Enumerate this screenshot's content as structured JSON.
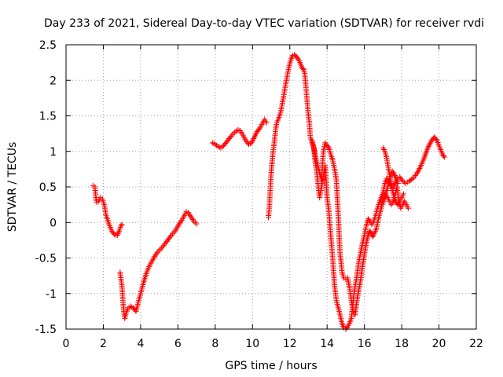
{
  "chart_data": {
    "type": "scatter",
    "title": "Day 233 of 2021, Sidereal Day-to-day VTEC variation (SDTVAR) for receiver rvdi",
    "xlabel": "GPS time / hours",
    "ylabel": "SDTVAR / TECUs",
    "xlim": [
      0,
      22
    ],
    "ylim": [
      -1.5,
      2.5
    ],
    "xticks": [
      "0",
      "2",
      "4",
      "6",
      "8",
      "10",
      "12",
      "14",
      "16",
      "18",
      "20",
      "22"
    ],
    "yticks": [
      "-1.5",
      "-1",
      "-0.5",
      "0",
      "0.5",
      "1",
      "1.5",
      "2",
      "2.5"
    ],
    "grid": true,
    "marker": "plus",
    "color": "#ff0000",
    "series": [
      {
        "segments": [
          [
            [
              1.45,
              0.52
            ],
            [
              1.55,
              0.5
            ],
            [
              1.6,
              0.35
            ],
            [
              1.65,
              0.28
            ],
            [
              1.75,
              0.3
            ],
            [
              1.85,
              0.35
            ],
            [
              1.95,
              0.33
            ],
            [
              2.05,
              0.25
            ],
            [
              2.15,
              0.1
            ],
            [
              2.3,
              -0.02
            ],
            [
              2.45,
              -0.12
            ],
            [
              2.6,
              -0.17
            ],
            [
              2.75,
              -0.18
            ],
            [
              2.85,
              -0.12
            ],
            [
              2.95,
              -0.04
            ],
            [
              3.0,
              -0.03
            ]
          ],
          [
            [
              2.9,
              -0.7
            ],
            [
              3.0,
              -0.9
            ],
            [
              3.05,
              -1.1
            ],
            [
              3.1,
              -1.25
            ],
            [
              3.15,
              -1.35
            ],
            [
              3.2,
              -1.3
            ],
            [
              3.3,
              -1.22
            ],
            [
              3.45,
              -1.18
            ],
            [
              3.6,
              -1.2
            ],
            [
              3.75,
              -1.25
            ],
            [
              3.85,
              -1.15
            ],
            [
              4.0,
              -1.0
            ],
            [
              4.15,
              -0.85
            ],
            [
              4.3,
              -0.72
            ],
            [
              4.45,
              -0.62
            ],
            [
              4.6,
              -0.55
            ],
            [
              4.75,
              -0.48
            ],
            [
              4.9,
              -0.42
            ],
            [
              5.05,
              -0.38
            ],
            [
              5.25,
              -0.32
            ],
            [
              5.45,
              -0.25
            ],
            [
              5.65,
              -0.18
            ],
            [
              5.85,
              -0.12
            ],
            [
              6.05,
              -0.03
            ],
            [
              6.2,
              0.03
            ],
            [
              6.35,
              0.1
            ],
            [
              6.45,
              0.15
            ],
            [
              6.55,
              0.14
            ],
            [
              6.7,
              0.08
            ],
            [
              6.85,
              0.02
            ],
            [
              7.0,
              -0.02
            ]
          ],
          [
            [
              7.85,
              1.12
            ],
            [
              8.0,
              1.1
            ],
            [
              8.15,
              1.07
            ],
            [
              8.3,
              1.05
            ],
            [
              8.45,
              1.08
            ],
            [
              8.6,
              1.13
            ],
            [
              8.75,
              1.18
            ],
            [
              8.9,
              1.23
            ],
            [
              9.05,
              1.27
            ],
            [
              9.2,
              1.3
            ],
            [
              9.35,
              1.29
            ],
            [
              9.5,
              1.22
            ],
            [
              9.65,
              1.15
            ],
            [
              9.8,
              1.1
            ],
            [
              9.95,
              1.12
            ],
            [
              10.1,
              1.2
            ],
            [
              10.25,
              1.28
            ],
            [
              10.4,
              1.33
            ],
            [
              10.55,
              1.4
            ],
            [
              10.65,
              1.45
            ],
            [
              10.75,
              1.4
            ]
          ],
          [
            [
              10.85,
              0.07
            ],
            [
              10.9,
              0.2
            ],
            [
              10.95,
              0.45
            ],
            [
              11.0,
              0.68
            ],
            [
              11.05,
              0.85
            ],
            [
              11.1,
              1.0
            ],
            [
              11.15,
              1.08
            ],
            [
              11.2,
              1.2
            ],
            [
              11.25,
              1.33
            ],
            [
              11.3,
              1.4
            ],
            [
              11.35,
              1.43
            ],
            [
              11.45,
              1.5
            ],
            [
              11.55,
              1.6
            ],
            [
              11.65,
              1.75
            ],
            [
              11.75,
              1.9
            ],
            [
              11.85,
              2.05
            ],
            [
              11.95,
              2.18
            ],
            [
              12.05,
              2.28
            ],
            [
              12.15,
              2.35
            ],
            [
              12.25,
              2.36
            ],
            [
              12.35,
              2.33
            ],
            [
              12.45,
              2.3
            ],
            [
              12.55,
              2.25
            ],
            [
              12.65,
              2.18
            ],
            [
              12.75,
              2.15
            ],
            [
              12.8,
              2.1
            ],
            [
              12.85,
              1.95
            ],
            [
              12.9,
              1.8
            ],
            [
              12.95,
              1.65
            ],
            [
              13.0,
              1.5
            ],
            [
              13.05,
              1.4
            ],
            [
              13.1,
              1.2
            ],
            [
              13.2,
              1.12
            ],
            [
              13.3,
              1.05
            ],
            [
              13.35,
              0.88
            ],
            [
              13.45,
              0.7
            ],
            [
              13.55,
              0.45
            ],
            [
              13.6,
              0.35
            ],
            [
              13.7,
              0.5
            ],
            [
              13.8,
              0.65
            ],
            [
              13.9,
              0.8
            ],
            [
              14.0,
              0.35
            ],
            [
              14.1,
              0.15
            ],
            [
              14.2,
              -0.2
            ],
            [
              14.3,
              -0.5
            ],
            [
              14.4,
              -0.9
            ],
            [
              14.5,
              -1.1
            ],
            [
              14.6,
              -1.2
            ],
            [
              14.7,
              -1.3
            ],
            [
              14.8,
              -1.42
            ],
            [
              14.9,
              -1.48
            ],
            [
              15.0,
              -1.5
            ],
            [
              15.1,
              -1.47
            ],
            [
              15.2,
              -1.42
            ],
            [
              15.3,
              -1.35
            ],
            [
              15.4,
              -1.1
            ],
            [
              15.5,
              -0.9
            ],
            [
              15.6,
              -0.75
            ],
            [
              15.7,
              -0.55
            ],
            [
              15.8,
              -0.42
            ],
            [
              15.9,
              -0.3
            ],
            [
              16.0,
              -0.18
            ],
            [
              16.1,
              -0.05
            ],
            [
              16.2,
              0.05
            ],
            [
              16.3,
              0.02
            ],
            [
              16.4,
              -0.03
            ],
            [
              16.5,
              0.02
            ],
            [
              16.6,
              0.1
            ],
            [
              16.7,
              0.2
            ],
            [
              16.8,
              0.28
            ],
            [
              16.9,
              0.35
            ],
            [
              17.0,
              0.42
            ],
            [
              17.1,
              0.55
            ],
            [
              17.2,
              0.62
            ],
            [
              17.3,
              0.58
            ],
            [
              17.4,
              0.52
            ],
            [
              17.5,
              0.48
            ],
            [
              17.6,
              0.52
            ],
            [
              17.7,
              0.58
            ],
            [
              17.8,
              0.62
            ],
            [
              17.9,
              0.64
            ],
            [
              18.0,
              0.6
            ],
            [
              18.2,
              0.55
            ],
            [
              18.4,
              0.58
            ],
            [
              18.6,
              0.62
            ],
            [
              18.8,
              0.68
            ],
            [
              19.0,
              0.78
            ],
            [
              19.2,
              0.9
            ],
            [
              19.4,
              1.05
            ],
            [
              19.6,
              1.15
            ],
            [
              19.75,
              1.2
            ],
            [
              19.9,
              1.15
            ],
            [
              20.05,
              1.05
            ],
            [
              20.2,
              0.95
            ],
            [
              20.3,
              0.92
            ]
          ],
          [
            [
              13.2,
              1.15
            ],
            [
              13.4,
              0.9
            ],
            [
              13.55,
              0.75
            ],
            [
              13.7,
              0.6
            ],
            [
              13.8,
              1.0
            ],
            [
              13.9,
              1.12
            ],
            [
              14.0,
              1.08
            ],
            [
              14.1,
              1.05
            ],
            [
              14.2,
              0.95
            ],
            [
              14.3,
              0.88
            ],
            [
              14.4,
              0.75
            ],
            [
              14.5,
              0.6
            ],
            [
              14.55,
              0.35
            ],
            [
              14.6,
              0.1
            ],
            [
              14.65,
              -0.2
            ],
            [
              14.7,
              -0.45
            ],
            [
              14.75,
              -0.55
            ],
            [
              14.8,
              -0.7
            ],
            [
              14.9,
              -0.78
            ],
            [
              15.0,
              -0.8
            ],
            [
              15.1,
              -0.78
            ],
            [
              15.2,
              -0.92
            ],
            [
              15.3,
              -1.1
            ],
            [
              15.4,
              -1.25
            ],
            [
              15.5,
              -1.3
            ],
            [
              15.6,
              -1.1
            ],
            [
              15.7,
              -0.95
            ],
            [
              15.8,
              -0.8
            ],
            [
              15.9,
              -0.62
            ],
            [
              16.0,
              -0.45
            ],
            [
              16.1,
              -0.3
            ],
            [
              16.2,
              -0.18
            ],
            [
              16.3,
              -0.12
            ],
            [
              16.45,
              -0.2
            ],
            [
              16.55,
              -0.15
            ],
            [
              16.65,
              -0.08
            ],
            [
              16.75,
              0.05
            ],
            [
              16.85,
              0.15
            ],
            [
              16.95,
              0.25
            ],
            [
              17.05,
              0.3
            ],
            [
              17.15,
              0.4
            ],
            [
              17.25,
              0.35
            ],
            [
              17.35,
              0.3
            ],
            [
              17.45,
              0.25
            ],
            [
              17.55,
              0.3
            ],
            [
              17.65,
              0.4
            ],
            [
              17.75,
              0.5
            ],
            [
              17.85,
              0.3
            ],
            [
              17.95,
              0.2
            ],
            [
              18.05,
              0.25
            ],
            [
              18.15,
              0.3
            ],
            [
              18.25,
              0.25
            ],
            [
              18.35,
              0.2
            ]
          ],
          [
            [
              17.0,
              1.05
            ],
            [
              17.1,
              1.0
            ],
            [
              17.2,
              0.9
            ],
            [
              17.3,
              0.75
            ],
            [
              17.4,
              0.6
            ],
            [
              17.5,
              0.45
            ],
            [
              17.6,
              0.35
            ],
            [
              17.7,
              0.28
            ],
            [
              17.8,
              0.25
            ],
            [
              17.9,
              0.3
            ],
            [
              18.0,
              0.35
            ],
            [
              18.1,
              0.4
            ]
          ],
          [
            [
              16.9,
              0.28
            ],
            [
              17.0,
              0.32
            ],
            [
              17.1,
              0.38
            ],
            [
              17.2,
              0.45
            ],
            [
              17.3,
              0.55
            ],
            [
              17.4,
              0.65
            ],
            [
              17.5,
              0.72
            ],
            [
              17.6,
              0.68
            ],
            [
              17.7,
              0.62
            ],
            [
              17.8,
              0.55
            ]
          ]
        ]
      }
    ]
  }
}
